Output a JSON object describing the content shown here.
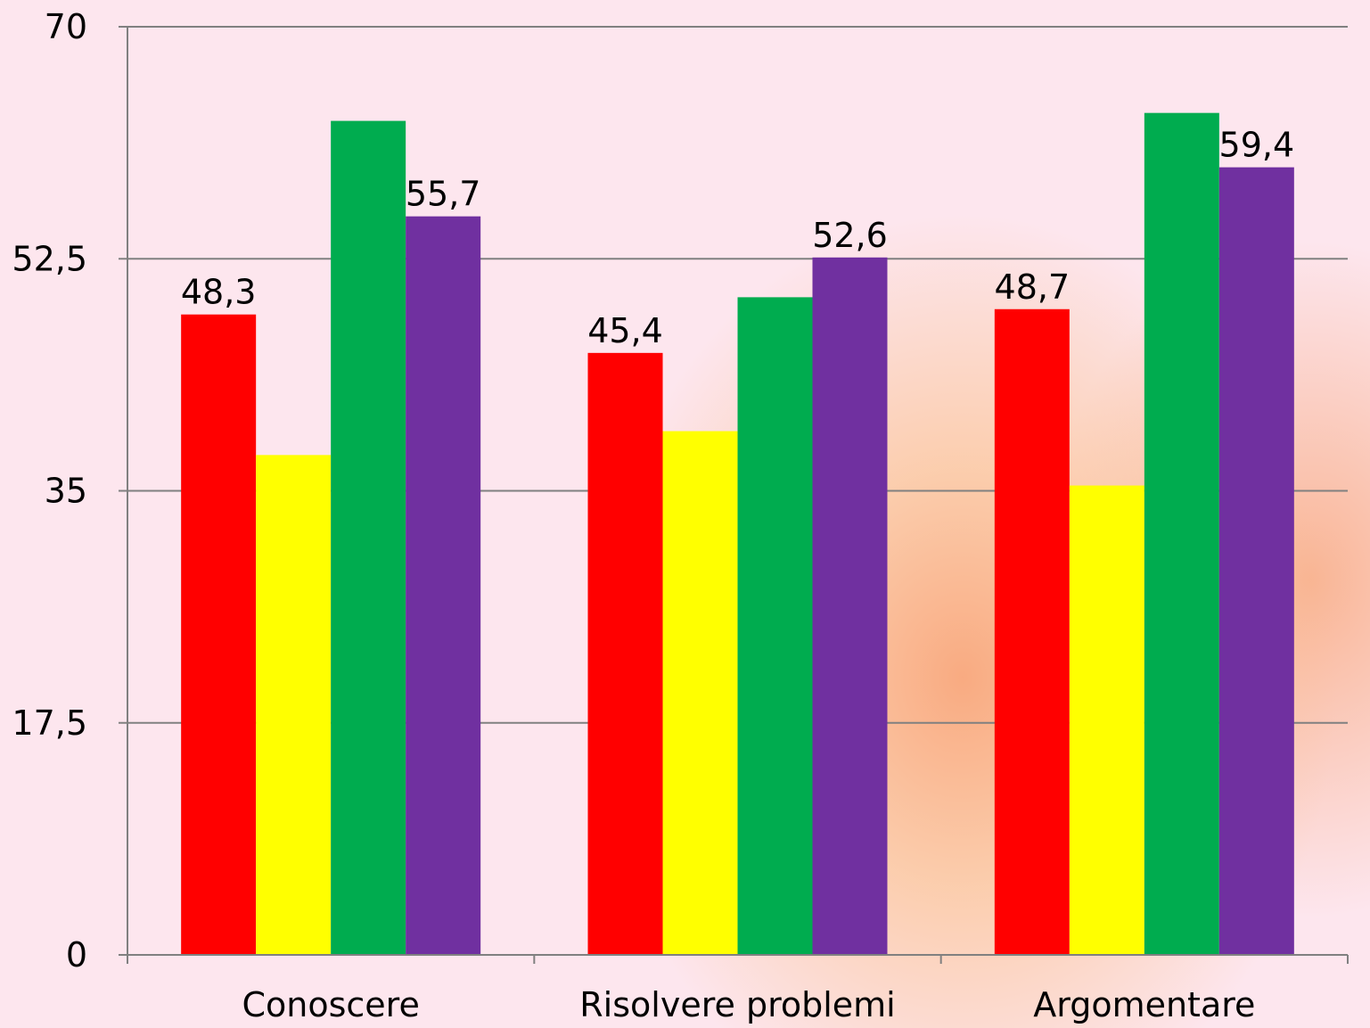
{
  "chart_data": {
    "type": "bar",
    "categories": [
      "Conoscere",
      "Risolvere problemi",
      "Argomentare"
    ],
    "series": [
      {
        "color": "#ff0000",
        "values": [
          48.3,
          45.4,
          48.7
        ],
        "labels": [
          "48,3",
          "45,4",
          "48,7"
        ]
      },
      {
        "color": "#ffff00",
        "values": [
          37.7,
          39.5,
          35.4
        ],
        "labels": [
          "",
          "",
          ""
        ]
      },
      {
        "color": "#00ac4f",
        "values": [
          62.9,
          49.6,
          63.5
        ],
        "labels": [
          "",
          "",
          ""
        ]
      },
      {
        "color": "#7030a0",
        "values": [
          55.7,
          52.6,
          59.4
        ],
        "labels": [
          "55,7",
          "52,6",
          "59,4"
        ]
      }
    ],
    "ylim": [
      0,
      70
    ],
    "yticks": [
      0,
      17.5,
      35,
      52.5,
      70
    ],
    "ytick_labels": [
      "0",
      "17,5",
      "35",
      "52,5",
      "70"
    ],
    "grid": true,
    "gridline_color": "#808080"
  }
}
